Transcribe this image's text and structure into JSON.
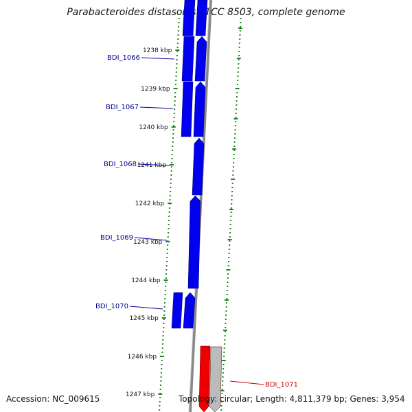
{
  "title": "Parabacteroides distasonis ATCC 8503, complete genome",
  "footer": {
    "accession": "Accession: NC_009615",
    "summary": "Topology: circular; Length: 4,811,379 bp; Genes: 3,954"
  },
  "colors": {
    "forward_gene": "#0000ee",
    "reverse_gene": "#ee0000",
    "reverse_gene_shadow": "#bbbbbb",
    "backbone": "#888888",
    "tick_dots": "#228822",
    "forward_label": "#000099",
    "reverse_label": "#cc0000"
  },
  "kbp_ticks": [
    "1238 kbp",
    "1239 kbp",
    "1240 kbp",
    "1241 kbp",
    "1242 kbp",
    "1243 kbp",
    "1244 kbp",
    "1245 kbp",
    "1246 kbp",
    "1247 kbp"
  ],
  "genes": [
    {
      "name": "BDI_1066",
      "strand": "forward"
    },
    {
      "name": "BDI_1067",
      "strand": "forward"
    },
    {
      "name": "BDI_1068",
      "strand": "forward"
    },
    {
      "name": "BDI_1069",
      "strand": "forward"
    },
    {
      "name": "BDI_1070",
      "strand": "forward"
    },
    {
      "name": "BDI_1071",
      "strand": "reverse"
    }
  ]
}
